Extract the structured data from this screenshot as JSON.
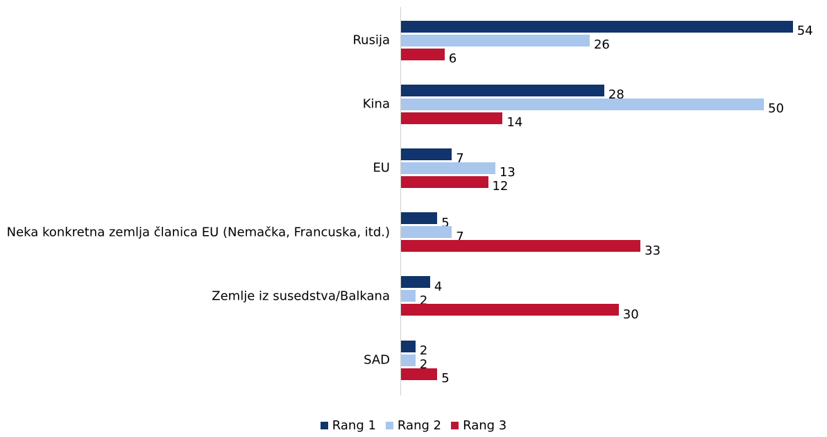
{
  "chart_data": {
    "type": "bar",
    "orientation": "horizontal",
    "categories": [
      "Rusija",
      "Kina",
      "EU",
      "Neka konkretna zemlja članica EU (Nemačka, Francuska, itd.)",
      "Zemlje iz susedstva/Balkana",
      "SAD"
    ],
    "series": [
      {
        "name": "Rang 1",
        "color": "#10346b",
        "values": [
          54,
          28,
          7,
          5,
          4,
          2
        ]
      },
      {
        "name": "Rang 2",
        "color": "#a9c6ec",
        "values": [
          26,
          50,
          13,
          7,
          2,
          2
        ]
      },
      {
        "name": "Rang 3",
        "color": "#be1431",
        "values": [
          6,
          14,
          12,
          33,
          30,
          5
        ]
      }
    ],
    "legend": "bottom"
  }
}
